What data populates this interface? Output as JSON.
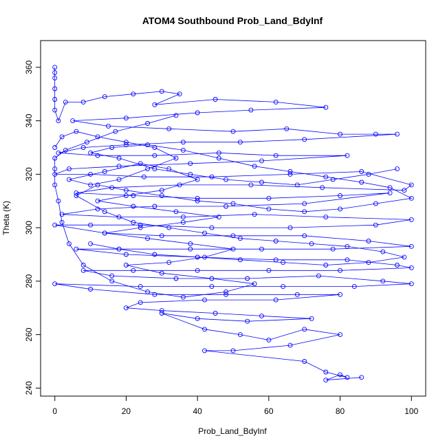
{
  "chart_data": {
    "type": "scatter",
    "title": "ATOM4 Southbound Prob_Land_BdyInf",
    "xlabel": "Prob_Land_BdyInf",
    "ylabel": "Theta (K)",
    "xlim": [
      -4,
      104
    ],
    "ylim": [
      237,
      370
    ],
    "x_ticks": [
      0,
      20,
      40,
      60,
      80,
      100
    ],
    "y_ticks": [
      240,
      260,
      280,
      300,
      320,
      340,
      360
    ],
    "grid": false,
    "legend": "none",
    "marker": "open-circle",
    "connected": true,
    "series_color": "#0000ff",
    "series": [
      {
        "points": [
          [
            0,
            360
          ],
          [
            0,
            358
          ],
          [
            0,
            356
          ],
          [
            0,
            352
          ],
          [
            0,
            348
          ],
          [
            0,
            344
          ],
          [
            1,
            340
          ],
          [
            3,
            347
          ],
          [
            8,
            347
          ],
          [
            14,
            349
          ],
          [
            22,
            350
          ],
          [
            30,
            351
          ],
          [
            35,
            350
          ],
          [
            28,
            346
          ],
          [
            45,
            348
          ],
          [
            62,
            347
          ],
          [
            76,
            345
          ],
          [
            55,
            344
          ],
          [
            40,
            343
          ],
          [
            20,
            341
          ],
          [
            5,
            340
          ],
          [
            15,
            338
          ],
          [
            32,
            337
          ],
          [
            50,
            336
          ],
          [
            65,
            337
          ],
          [
            80,
            335
          ],
          [
            90,
            335
          ],
          [
            96,
            335
          ],
          [
            70,
            333
          ],
          [
            52,
            332
          ],
          [
            36,
            332
          ],
          [
            20,
            331
          ],
          [
            8,
            330
          ],
          [
            1,
            328
          ],
          [
            12,
            327
          ],
          [
            28,
            327
          ],
          [
            46,
            328
          ],
          [
            62,
            327
          ],
          [
            82,
            327
          ],
          [
            58,
            325
          ],
          [
            38,
            324
          ],
          [
            18,
            323
          ],
          [
            4,
            322
          ],
          [
            0,
            320
          ],
          [
            10,
            320
          ],
          [
            25,
            319
          ],
          [
            44,
            319
          ],
          [
            66,
            320
          ],
          [
            86,
            321
          ],
          [
            100,
            316
          ],
          [
            98,
            314
          ],
          [
            75,
            315
          ],
          [
            55,
            316
          ],
          [
            35,
            316
          ],
          [
            16,
            315
          ],
          [
            6,
            313
          ],
          [
            22,
            312
          ],
          [
            40,
            311
          ],
          [
            60,
            311
          ],
          [
            80,
            312
          ],
          [
            94,
            313
          ],
          [
            70,
            309
          ],
          [
            48,
            308
          ],
          [
            28,
            308
          ],
          [
            12,
            307
          ],
          [
            2,
            305
          ],
          [
            18,
            304
          ],
          [
            36,
            304
          ],
          [
            56,
            305
          ],
          [
            76,
            304
          ],
          [
            100,
            303
          ],
          [
            90,
            301
          ],
          [
            66,
            300
          ],
          [
            44,
            300
          ],
          [
            24,
            301
          ],
          [
            10,
            301
          ],
          [
            0,
            301
          ],
          [
            14,
            298
          ],
          [
            30,
            297
          ],
          [
            50,
            297
          ],
          [
            70,
            297
          ],
          [
            88,
            295
          ],
          [
            100,
            293
          ],
          [
            78,
            292
          ],
          [
            58,
            292
          ],
          [
            38,
            292
          ],
          [
            18,
            292
          ],
          [
            6,
            292
          ],
          [
            20,
            290
          ],
          [
            40,
            289
          ],
          [
            62,
            288
          ],
          [
            82,
            288
          ],
          [
            96,
            286
          ],
          [
            100,
            285
          ],
          [
            80,
            284
          ],
          [
            60,
            284
          ],
          [
            40,
            284
          ],
          [
            22,
            284
          ],
          [
            8,
            284
          ],
          [
            16,
            282
          ],
          [
            34,
            281
          ],
          [
            54,
            281
          ],
          [
            74,
            282
          ],
          [
            92,
            280
          ],
          [
            100,
            279
          ],
          [
            84,
            278
          ],
          [
            64,
            278
          ],
          [
            44,
            278
          ],
          [
            24,
            278
          ],
          [
            0,
            279
          ],
          [
            10,
            277
          ],
          [
            28,
            275
          ],
          [
            48,
            275
          ],
          [
            68,
            275
          ],
          [
            80,
            275
          ],
          [
            62,
            273
          ],
          [
            42,
            273
          ],
          [
            24,
            272
          ],
          [
            20,
            270
          ],
          [
            30,
            269
          ],
          [
            45,
            268
          ],
          [
            58,
            267
          ],
          [
            72,
            266
          ],
          [
            54,
            265
          ],
          [
            40,
            266
          ],
          [
            30,
            268
          ],
          [
            42,
            262
          ],
          [
            52,
            260
          ],
          [
            60,
            258
          ],
          [
            70,
            262
          ],
          [
            80,
            260
          ],
          [
            66,
            256
          ],
          [
            50,
            254
          ],
          [
            42,
            254
          ],
          [
            70,
            250
          ],
          [
            76,
            246
          ],
          [
            82,
            244
          ],
          [
            80,
            245
          ],
          [
            76,
            243
          ],
          [
            86,
            244
          ]
        ]
      },
      {
        "points": [
          [
            0,
            330
          ],
          [
            2,
            334
          ],
          [
            6,
            336
          ],
          [
            12,
            334
          ],
          [
            20,
            332
          ],
          [
            28,
            330
          ],
          [
            34,
            326
          ],
          [
            26,
            322
          ],
          [
            18,
            318
          ],
          [
            10,
            316
          ],
          [
            4,
            318
          ],
          [
            14,
            321
          ],
          [
            24,
            324
          ],
          [
            32,
            322
          ],
          [
            40,
            318
          ],
          [
            30,
            314
          ],
          [
            20,
            312
          ],
          [
            12,
            310
          ],
          [
            22,
            308
          ],
          [
            34,
            306
          ],
          [
            46,
            304
          ],
          [
            36,
            302
          ],
          [
            24,
            300
          ],
          [
            14,
            298
          ],
          [
            26,
            296
          ],
          [
            38,
            294
          ],
          [
            50,
            292
          ],
          [
            42,
            289
          ],
          [
            32,
            287
          ],
          [
            20,
            286
          ],
          [
            30,
            283
          ],
          [
            44,
            281
          ],
          [
            56,
            279
          ],
          [
            48,
            276
          ],
          [
            36,
            274
          ],
          [
            26,
            276
          ],
          [
            16,
            280
          ],
          [
            8,
            286
          ],
          [
            4,
            294
          ],
          [
            2,
            302
          ],
          [
            1,
            310
          ],
          [
            0,
            316
          ],
          [
            0,
            322
          ],
          [
            0,
            326
          ],
          [
            3,
            329
          ],
          [
            9,
            332
          ],
          [
            17,
            336
          ],
          [
            26,
            339
          ],
          [
            34,
            342
          ]
        ]
      },
      {
        "points": [
          [
            96,
            322
          ],
          [
            88,
            320
          ],
          [
            78,
            318
          ],
          [
            68,
            316
          ],
          [
            58,
            317
          ],
          [
            48,
            318
          ],
          [
            38,
            320
          ],
          [
            28,
            322
          ],
          [
            18,
            326
          ],
          [
            10,
            328
          ],
          [
            16,
            330
          ],
          [
            26,
            331
          ],
          [
            36,
            329
          ],
          [
            46,
            326
          ],
          [
            56,
            323
          ],
          [
            66,
            321
          ],
          [
            76,
            319
          ],
          [
            86,
            317
          ],
          [
            94,
            315
          ],
          [
            100,
            311
          ],
          [
            90,
            309
          ],
          [
            80,
            307
          ],
          [
            70,
            306
          ],
          [
            60,
            307
          ],
          [
            50,
            309
          ],
          [
            40,
            310
          ],
          [
            30,
            312
          ],
          [
            20,
            314
          ],
          [
            12,
            316
          ],
          [
            6,
            312
          ],
          [
            14,
            306
          ],
          [
            22,
            302
          ],
          [
            32,
            300
          ],
          [
            42,
            298
          ],
          [
            52,
            296
          ],
          [
            62,
            295
          ],
          [
            72,
            294
          ],
          [
            82,
            293
          ],
          [
            92,
            291
          ],
          [
            98,
            289
          ],
          [
            88,
            287
          ],
          [
            76,
            286
          ],
          [
            64,
            287
          ],
          [
            52,
            288
          ],
          [
            40,
            289
          ],
          [
            28,
            290
          ],
          [
            18,
            292
          ],
          [
            10,
            294
          ]
        ]
      }
    ]
  }
}
